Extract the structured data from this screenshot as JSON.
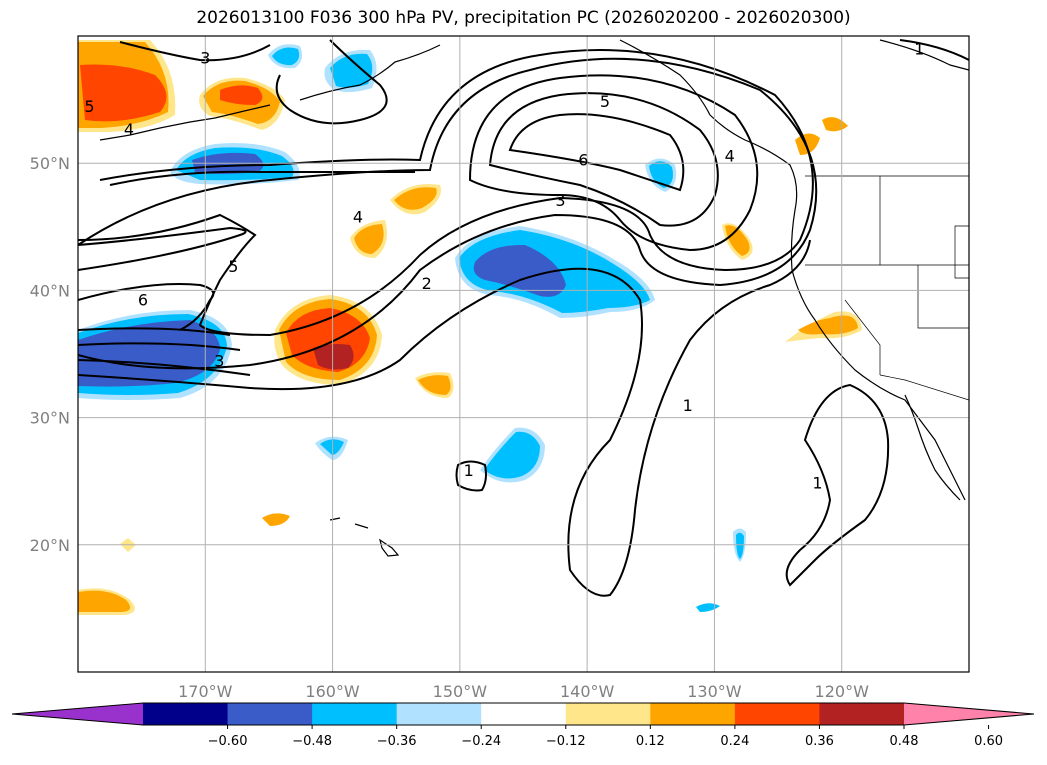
{
  "chart_data": {
    "type": "map-contour",
    "title": "2026013100 F036 300 hPa PV, precipitation PC (2026020200 - 2026020300)",
    "xlim": [
      -180,
      -110
    ],
    "ylim": [
      10,
      60
    ],
    "lon_ticks": [
      {
        "lon": -170,
        "label": "170°W"
      },
      {
        "lon": -160,
        "label": "160°W"
      },
      {
        "lon": -150,
        "label": "150°W"
      },
      {
        "lon": -140,
        "label": "140°W"
      },
      {
        "lon": -130,
        "label": "130°W"
      },
      {
        "lon": -120,
        "label": "120°W"
      }
    ],
    "lat_ticks": [
      {
        "lat": 50,
        "label": "50°N"
      },
      {
        "lat": 40,
        "label": "40°N"
      },
      {
        "lat": 30,
        "label": "30°N"
      },
      {
        "lat": 20,
        "label": "20°N"
      }
    ],
    "contour_labels": [
      {
        "text": "3",
        "lon": -170,
        "lat": 58.3
      },
      {
        "text": "5",
        "lon": -179.1,
        "lat": 54.5
      },
      {
        "text": "4",
        "lon": -176,
        "lat": 52.7
      },
      {
        "text": "4",
        "lon": -158,
        "lat": 45.8
      },
      {
        "text": "5",
        "lon": -167.8,
        "lat": 41.9
      },
      {
        "text": "6",
        "lon": -174.9,
        "lat": 39.3
      },
      {
        "text": "3",
        "lon": -168.9,
        "lat": 34.5
      },
      {
        "text": "2",
        "lon": -152.6,
        "lat": 40.6
      },
      {
        "text": "5",
        "lon": -138.6,
        "lat": 54.9
      },
      {
        "text": "6",
        "lon": -140.3,
        "lat": 50.3
      },
      {
        "text": "3",
        "lon": -142.1,
        "lat": 47.1
      },
      {
        "text": "4",
        "lon": -128.8,
        "lat": 50.6
      },
      {
        "text": "1",
        "lon": -113.9,
        "lat": 59
      },
      {
        "text": "1",
        "lon": -132.1,
        "lat": 31
      },
      {
        "text": "1",
        "lon": -121.9,
        "lat": 24.9
      },
      {
        "text": "1",
        "lon": -149.3,
        "lat": 25.9
      }
    ],
    "colorbar": {
      "ticks": [
        "−0.60",
        "−0.48",
        "−0.36",
        "−0.24",
        "−0.12",
        "0.12",
        "0.24",
        "0.36",
        "0.48",
        "0.60"
      ],
      "colors": [
        "#9932cc",
        "#00008b",
        "#3a5cc9",
        "#00bfff",
        "#b0e2ff",
        "#ffffff",
        "#ffe68a",
        "#ffa500",
        "#ff4500",
        "#b22222",
        "#ff82ab"
      ]
    },
    "precip_colors": {
      "neg3": "#3a5cc9",
      "neg2": "#00bfff",
      "neg1": "#b0e2ff",
      "pos1": "#ffe68a",
      "pos2": "#ffa500",
      "pos3": "#ff4500",
      "pos4": "#b22222"
    }
  }
}
